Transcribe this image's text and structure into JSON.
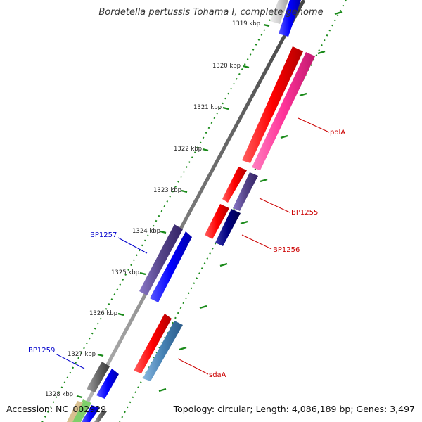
{
  "title": "Bordetella pertussis Tohama I, complete genome",
  "footer": {
    "accession": "Accession: NC_002929",
    "summary": "Topology: circular; Length: 4,086,189 bp; Genes: 3,497"
  },
  "map": {
    "ticks": [
      "1319 kbp",
      "1320 kbp",
      "1321 kbp",
      "1322 kbp",
      "1323 kbp",
      "1324 kbp",
      "1325 kbp",
      "1326 kbp",
      "1327 kbp",
      "1328 kbp"
    ],
    "forward_strand_color": "#ff0000",
    "reverse_strand_color": "#0000ff",
    "gc_skew_color": "#1a8a1a",
    "labels": [
      {
        "text": "polA",
        "color": "#cc0000"
      },
      {
        "text": "BP1255",
        "color": "#cc0000"
      },
      {
        "text": "BP1256",
        "color": "#cc0000"
      },
      {
        "text": "BP1257",
        "color": "#0000cc"
      },
      {
        "text": "sdaA",
        "color": "#cc0000"
      },
      {
        "text": "BP1259",
        "color": "#0000cc"
      }
    ]
  }
}
